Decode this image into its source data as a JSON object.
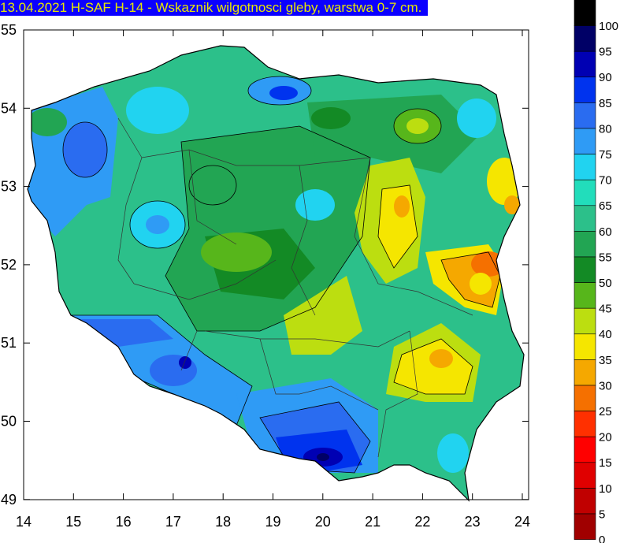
{
  "title": "13.04.2021 H-SAF H-14 - Wskaznik wilgotnosci gleby, warstwa 0-7 cm.",
  "axes": {
    "x_ticks": [
      "14",
      "15",
      "16",
      "17",
      "18",
      "19",
      "20",
      "21",
      "22",
      "23",
      "24"
    ],
    "y_ticks": [
      "55",
      "54",
      "53",
      "52",
      "51",
      "50",
      "49"
    ]
  },
  "legend": {
    "levels": [
      "100",
      "95",
      "90",
      "85",
      "80",
      "75",
      "70",
      "65",
      "60",
      "55",
      "50",
      "45",
      "40",
      "35",
      "30",
      "25",
      "20",
      "15",
      "10",
      "5",
      "0"
    ],
    "colors": [
      "#000000",
      "#000066",
      "#0000b3",
      "#0033ee",
      "#2a6cf0",
      "#2f9bf5",
      "#21d3f0",
      "#22ddbb",
      "#2cc08a",
      "#22a553",
      "#138a25",
      "#57b61b",
      "#bcde10",
      "#f5e600",
      "#f5a800",
      "#f57000",
      "#ff3000",
      "#ff0000",
      "#e00000",
      "#c00000",
      "#a00000"
    ]
  }
}
